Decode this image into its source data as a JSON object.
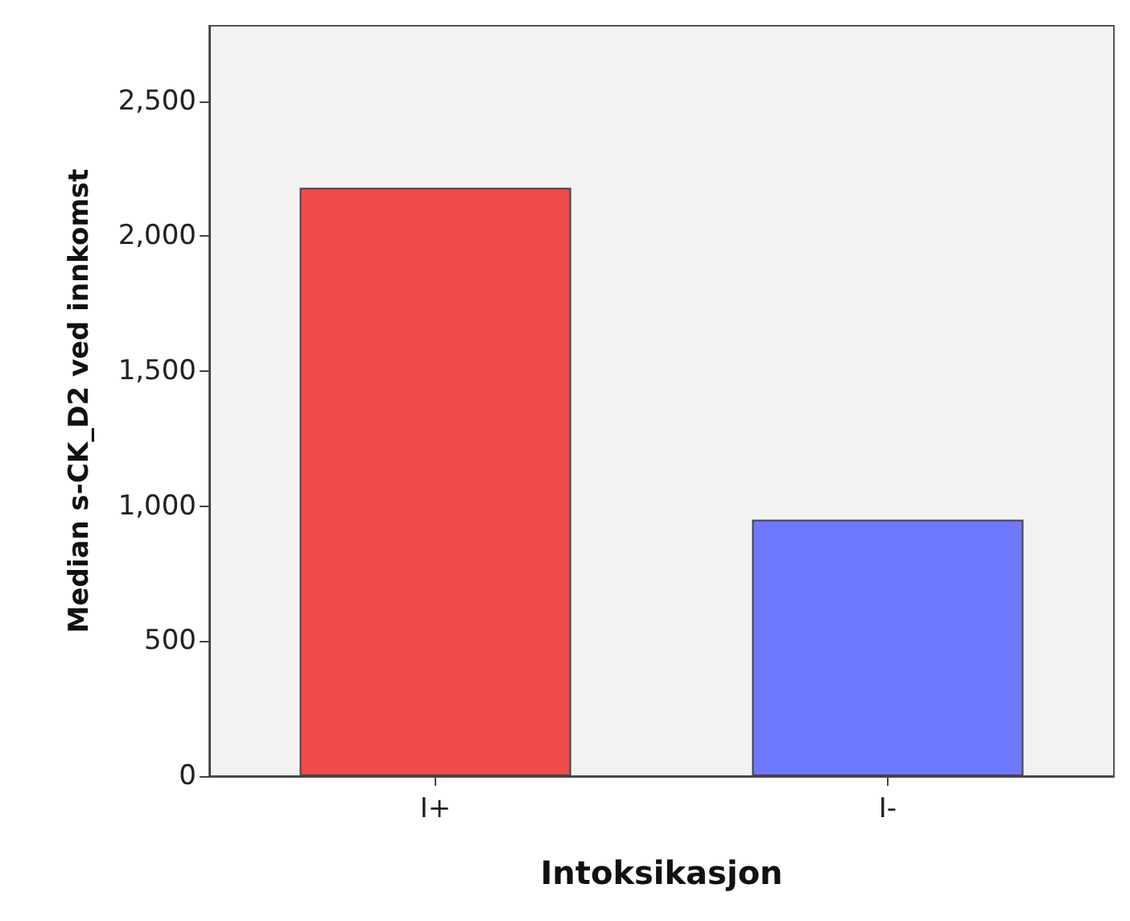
{
  "chart_data": {
    "type": "bar",
    "xlabel": "Intoksikasjon",
    "ylabel": "Median s-CK_D2 ved innkomst",
    "categories": [
      "I+",
      "I-"
    ],
    "values": [
      2180,
      950
    ],
    "colors": [
      "#ef4b4a",
      "#6e78ff"
    ],
    "ylim": [
      0,
      2780
    ],
    "yticks": [
      {
        "value": 0,
        "label": "0"
      },
      {
        "value": 500,
        "label": "500"
      },
      {
        "value": 1000,
        "label": "1,000"
      },
      {
        "value": 1500,
        "label": "1,500"
      },
      {
        "value": 2000,
        "label": "2,000"
      },
      {
        "value": 2500,
        "label": "2,500"
      }
    ],
    "grid": false
  }
}
